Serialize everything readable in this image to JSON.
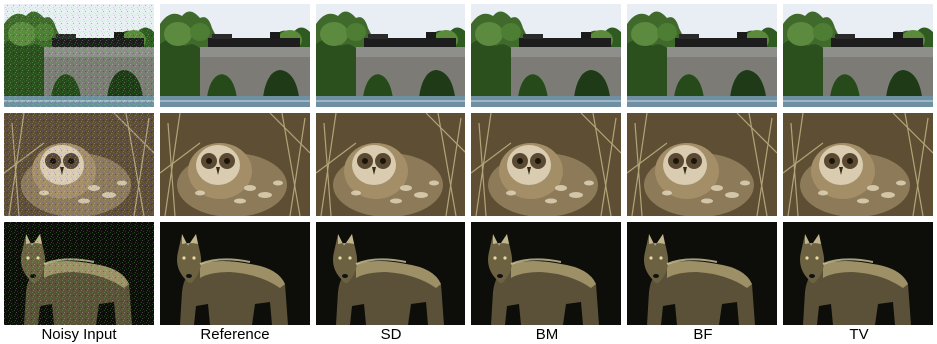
{
  "figure": {
    "columns": [
      {
        "label": "Noisy Input"
      },
      {
        "label": "Reference"
      },
      {
        "label": "SD"
      },
      {
        "label": "BM"
      },
      {
        "label": "BF"
      },
      {
        "label": "TV"
      }
    ],
    "rows": [
      {
        "subject": "train-on-stone-arch-bridge"
      },
      {
        "subject": "owl-in-grass"
      },
      {
        "subject": "wolf-at-night"
      }
    ]
  }
}
